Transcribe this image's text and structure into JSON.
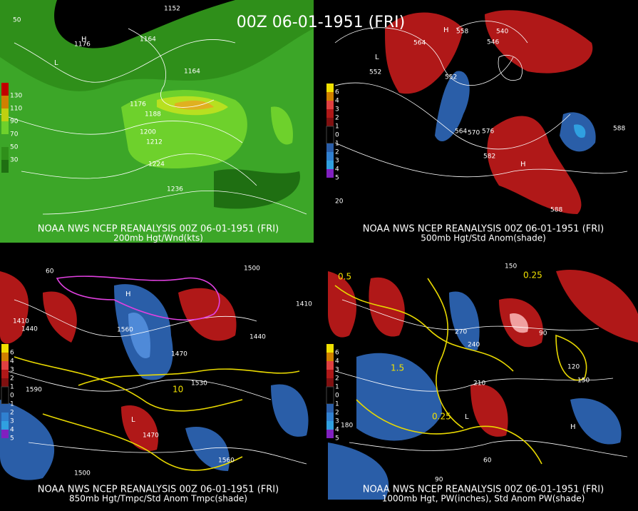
{
  "title": "00Z 06-01-1951 (FRI)",
  "panels": [
    {
      "caption": "NOAA NWS NCEP REANALYSIS 00Z 06-01-1951 (FRI)",
      "subtitle": "200mb Hgt/Wnd(kts)",
      "legend": [
        "130",
        "110",
        "90",
        "70",
        "50",
        "30"
      ],
      "labels": [
        "1152",
        "1164",
        "1176",
        "1188",
        "1200",
        "1212",
        "1224",
        "1236",
        "1164",
        "1176",
        "H",
        "L",
        "50"
      ]
    },
    {
      "caption": "NOAA NWS NCEP REANALYSIS 00Z 06-01-1951 (FRI)",
      "subtitle": "500mb Hgt/Std Anom(shade)",
      "legend": [
        "6",
        "4",
        "3",
        "2",
        "1",
        "0",
        "1",
        "2",
        "3",
        "4",
        "5"
      ],
      "labels": [
        "564",
        "552",
        "552",
        "564",
        "570",
        "576",
        "582",
        "588",
        "588",
        "546",
        "540",
        "558",
        "H",
        "L",
        "H",
        "20"
      ]
    },
    {
      "caption": "NOAA NWS NCEP REANALYSIS 00Z 06-01-1951 (FRI)",
      "subtitle": "850mb Hgt/Tmpc/Std Anom Tmpc(shade)",
      "legend": [
        "6",
        "4",
        "3",
        "2",
        "1",
        "0",
        "1",
        "2",
        "3",
        "4",
        "5"
      ],
      "labels": [
        "1500",
        "1470",
        "1560",
        "1440",
        "1410",
        "1530",
        "1590",
        "1560",
        "1500",
        "1440",
        "1410",
        "1470",
        "10",
        "H",
        "L",
        "60"
      ]
    },
    {
      "caption": "NOAA NWS NCEP REANALYSIS 00Z 06-01-1951 (FRI)",
      "subtitle": "1000mb Hgt, PW(inches), Std Anom PW(shade)",
      "legend": [
        "6",
        "4",
        "3",
        "2",
        "1",
        "0",
        "1",
        "2",
        "3",
        "4",
        "5"
      ],
      "labels": [
        "150",
        "90",
        "120",
        "270",
        "240",
        "210",
        "180",
        "60",
        "90",
        "150",
        "0.5",
        "0.25",
        "1.5",
        "0.25",
        "H",
        "L"
      ]
    }
  ]
}
